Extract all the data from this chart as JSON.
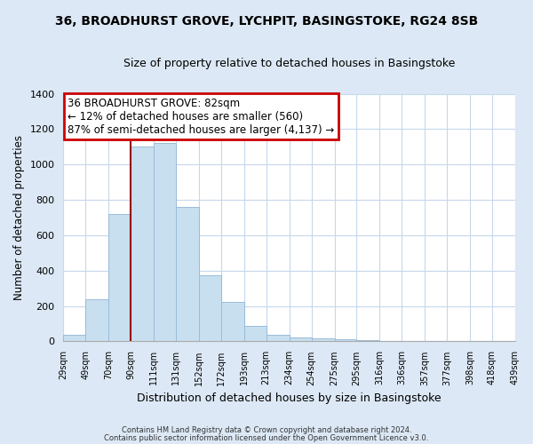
{
  "title": "36, BROADHURST GROVE, LYCHPIT, BASINGSTOKE, RG24 8SB",
  "subtitle": "Size of property relative to detached houses in Basingstoke",
  "xlabel": "Distribution of detached houses by size in Basingstoke",
  "ylabel": "Number of detached properties",
  "bar_values": [
    35,
    240,
    720,
    1100,
    1120,
    760,
    375,
    225,
    90,
    35,
    20,
    15,
    10,
    5,
    2,
    0,
    0,
    0,
    0,
    0
  ],
  "bin_labels": [
    "29sqm",
    "49sqm",
    "70sqm",
    "90sqm",
    "111sqm",
    "131sqm",
    "152sqm",
    "172sqm",
    "193sqm",
    "213sqm",
    "234sqm",
    "254sqm",
    "275sqm",
    "295sqm",
    "316sqm",
    "336sqm",
    "357sqm",
    "377sqm",
    "398sqm",
    "418sqm",
    "439sqm"
  ],
  "bar_color": "#c8dff0",
  "bar_edge_color": "#9abcd8",
  "annotation_line1": "36 BROADHURST GROVE: 82sqm",
  "annotation_line2": "← 12% of detached houses are smaller (560)",
  "annotation_line3": "87% of semi-detached houses are larger (4,137) →",
  "annotation_box_color": "#ffffff",
  "annotation_box_edge_color": "#cc0000",
  "marker_line_color": "#990000",
  "ylim": [
    0,
    1400
  ],
  "yticks": [
    0,
    200,
    400,
    600,
    800,
    1000,
    1200,
    1400
  ],
  "footer_line1": "Contains HM Land Registry data © Crown copyright and database right 2024.",
  "footer_line2": "Contains public sector information licensed under the Open Government Licence v3.0.",
  "bg_color": "#dce8f5",
  "plot_bg_color": "#ffffff",
  "grid_color": "#c5d8ec",
  "bin_edges": [
    29,
    49,
    70,
    90,
    111,
    131,
    152,
    172,
    193,
    213,
    234,
    254,
    275,
    295,
    316,
    336,
    357,
    377,
    398,
    418,
    439
  ]
}
